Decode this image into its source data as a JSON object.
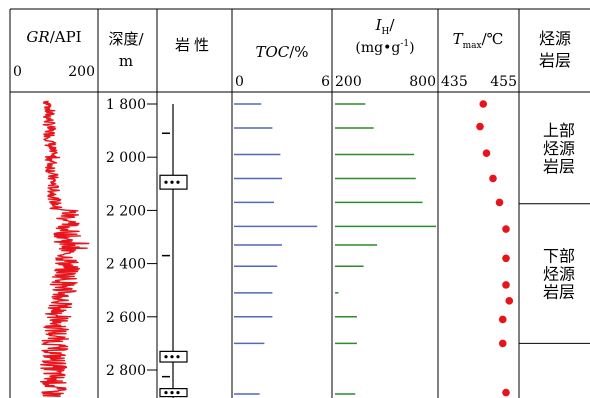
{
  "chart_data": {
    "type": "composite",
    "depth_axis": {
      "label": "深度/",
      "unit": "m",
      "ticks": [
        "1 800",
        "2 000",
        "2 200",
        "2 400",
        "2 600",
        "2 800"
      ],
      "tick_values": [
        1800,
        2000,
        2200,
        2400,
        2600,
        2800
      ],
      "range": [
        1775,
        2900
      ]
    },
    "gr": {
      "label_italic": "GR",
      "label_unit": "/API",
      "min_label": "0",
      "max_label": "200",
      "range": [
        0,
        200
      ],
      "color": "#e8141c",
      "profile": [
        {
          "depth": 1790,
          "value": 88
        },
        {
          "depth": 1850,
          "value": 88
        },
        {
          "depth": 1950,
          "value": 92
        },
        {
          "depth": 2050,
          "value": 95
        },
        {
          "depth": 2150,
          "value": 100
        },
        {
          "depth": 2190,
          "value": 105
        },
        {
          "depth": 2200,
          "value": 135
        },
        {
          "depth": 2260,
          "value": 130
        },
        {
          "depth": 2400,
          "value": 130
        },
        {
          "depth": 2480,
          "value": 125
        },
        {
          "depth": 2560,
          "value": 112
        },
        {
          "depth": 2650,
          "value": 105
        },
        {
          "depth": 2750,
          "value": 100
        },
        {
          "depth": 2890,
          "value": 98
        }
      ]
    },
    "lithology": {
      "label": "岩性",
      "color": "#000000",
      "dot_beds": [
        {
          "top": 2068,
          "bottom": 2120
        },
        {
          "top": 2730,
          "bottom": 2770
        },
        {
          "top": 2870,
          "bottom": 2900
        }
      ],
      "markers": [
        1910,
        2110,
        2370,
        2825
      ]
    },
    "toc": {
      "label_italic": "TOC",
      "label_unit": "/%",
      "min_label": "0",
      "max_label": "6",
      "range": [
        0,
        6
      ],
      "color": "#5566bb",
      "depths": [
        1800,
        1890,
        1990,
        2080,
        2170,
        2260,
        2330,
        2410,
        2510,
        2600,
        2700,
        2890
      ],
      "values": [
        1.7,
        2.4,
        2.9,
        3.0,
        2.5,
        5.2,
        3.0,
        2.7,
        2.4,
        2.4,
        1.9,
        1.6
      ]
    },
    "ih": {
      "label_italic": "I",
      "label_sub": "H",
      "label_slash": "/",
      "unit_main": "(mg•g",
      "unit_sup": "-1",
      "unit_end": ")",
      "min_label": "200",
      "max_label": "800",
      "range": [
        200,
        800
      ],
      "color": "#2a8c2a",
      "depths": [
        1800,
        1890,
        1990,
        2080,
        2170,
        2260,
        2330,
        2410,
        2510,
        2600,
        2700,
        2890
      ],
      "values": [
        380,
        430,
        670,
        680,
        720,
        850,
        450,
        370,
        220,
        330,
        330,
        320
      ]
    },
    "tmax": {
      "label_italic": "T",
      "label_sub": "max",
      "label_unit": "/℃",
      "min_label": "435",
      "max_label": "455",
      "range": [
        435,
        455
      ],
      "color": "#e8141c",
      "points": [
        {
          "depth": 1800,
          "value": 448
        },
        {
          "depth": 1885,
          "value": 447
        },
        {
          "depth": 1985,
          "value": 449
        },
        {
          "depth": 2080,
          "value": 451
        },
        {
          "depth": 2170,
          "value": 453
        },
        {
          "depth": 2270,
          "value": 455
        },
        {
          "depth": 2380,
          "value": 455
        },
        {
          "depth": 2480,
          "value": 455
        },
        {
          "depth": 2540,
          "value": 456
        },
        {
          "depth": 2610,
          "value": 454
        },
        {
          "depth": 2700,
          "value": 454
        },
        {
          "depth": 2885,
          "value": 455
        }
      ]
    },
    "source_rock": {
      "label": [
        "烃源",
        "岩层"
      ],
      "upper": {
        "text": [
          "上部",
          "烃源",
          "岩层"
        ],
        "bottom_depth": 2175
      },
      "lower": {
        "text": [
          "下部",
          "烃源",
          "岩层"
        ],
        "bottom_depth": 2700
      }
    }
  }
}
